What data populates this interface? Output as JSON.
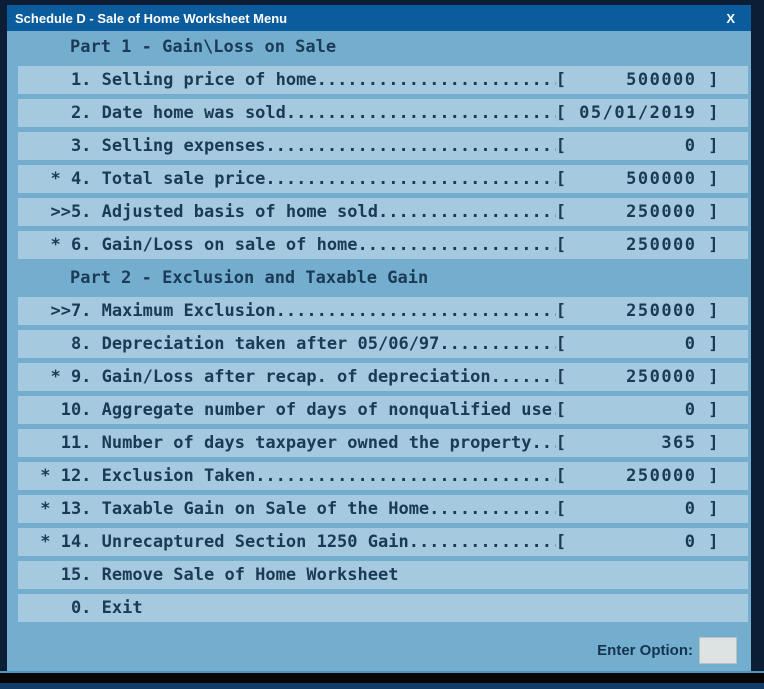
{
  "window": {
    "title": "Schedule D - Sale of Home Worksheet Menu",
    "close_label": "X"
  },
  "colors": {
    "titlebar": "#0a5c9c",
    "content_bg": "#74aecf",
    "row_bg": "#a5c9de",
    "text": "#1b3a55",
    "outer_border": "#0c1d36",
    "input_bg": "#dde3e2"
  },
  "menu": {
    "rows": [
      {
        "type": "header",
        "text": "Part 1 - Gain\\Loss on Sale"
      },
      {
        "type": "item",
        "prefix": "",
        "num": "1",
        "label": "Selling price of home",
        "value": "500000"
      },
      {
        "type": "item",
        "prefix": "",
        "num": "2",
        "label": "Date home was sold",
        "value": "05/01/2019"
      },
      {
        "type": "item",
        "prefix": "",
        "num": "3",
        "label": "Selling expenses",
        "value": "0"
      },
      {
        "type": "item",
        "prefix": "* ",
        "num": "4",
        "label": "Total sale price",
        "value": "500000"
      },
      {
        "type": "item",
        "prefix": ">>",
        "num": "5",
        "label": "Adjusted basis of home sold",
        "value": "250000"
      },
      {
        "type": "item",
        "prefix": "* ",
        "num": "6",
        "label": "Gain/Loss on sale of home",
        "value": "250000"
      },
      {
        "type": "header",
        "text": "Part 2 - Exclusion and Taxable Gain"
      },
      {
        "type": "item",
        "prefix": ">>",
        "num": "7",
        "label": "Maximum Exclusion",
        "value": "250000"
      },
      {
        "type": "item",
        "prefix": "",
        "num": "8",
        "label": "Depreciation taken after 05/06/97",
        "value": "0"
      },
      {
        "type": "item",
        "prefix": "* ",
        "num": "9",
        "label": "Gain/Loss after recap. of depreciation",
        "value": "250000"
      },
      {
        "type": "item",
        "prefix": "",
        "num": "10",
        "label": "Aggregate number of days of nonqualified use",
        "value": "0"
      },
      {
        "type": "item",
        "prefix": "",
        "num": "11",
        "label": "Number of days taxpayer owned the property",
        "value": "365"
      },
      {
        "type": "item",
        "prefix": "* ",
        "num": "12",
        "label": "Exclusion Taken",
        "value": "250000"
      },
      {
        "type": "item",
        "prefix": "* ",
        "num": "13",
        "label": "Taxable Gain on Sale of the Home",
        "value": "0"
      },
      {
        "type": "item",
        "prefix": "* ",
        "num": "14",
        "label": "Unrecaptured Section 1250 Gain",
        "value": "0"
      },
      {
        "type": "item",
        "prefix": "",
        "num": "15",
        "label": "Remove Sale of Home Worksheet",
        "value": null
      },
      {
        "type": "item",
        "prefix": "",
        "num": "0",
        "label": "Exit",
        "value": null
      }
    ]
  },
  "footer": {
    "prompt": "Enter Option:",
    "input_value": ""
  }
}
